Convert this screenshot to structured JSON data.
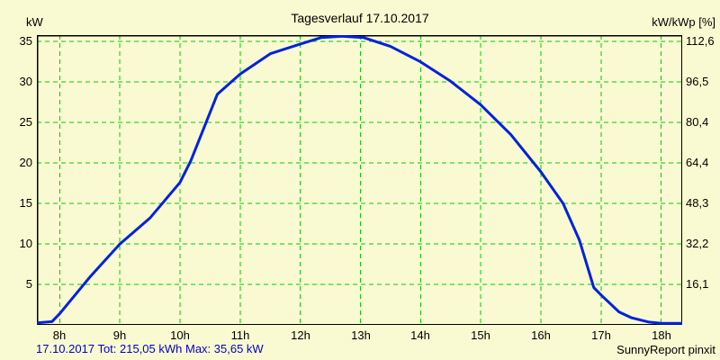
{
  "title": "Tagesverlauf 17.10.2017",
  "left_axis": {
    "label": "kW"
  },
  "right_axis": {
    "label": "kW/kWp [%]"
  },
  "footer": {
    "summary": "17.10.2017 Tot: 215,05 kWh Max: 35,65 kW",
    "branding": "SunnyReport pinxit"
  },
  "colors": {
    "background": "#FAFAD2",
    "grid": "#00CC00",
    "curve": "#0022DD",
    "border": "#000000",
    "summary_text": "#0000CC",
    "label_text": "#000000"
  },
  "chart_data": {
    "type": "line",
    "title": "Tagesverlauf 17.10.2017",
    "ylabel_left": "kW",
    "ylabel_right": "kW/kWp [%]",
    "x_unit": "hour_of_day",
    "grid": true,
    "grid_style": "dashed-green",
    "xlim": [
      7.62,
      18.35
    ],
    "ylim": [
      0,
      35.8
    ],
    "x_ticks": [
      {
        "h": 8,
        "label": "8h"
      },
      {
        "h": 9,
        "label": "9h"
      },
      {
        "h": 10,
        "label": "10h"
      },
      {
        "h": 11,
        "label": "11h"
      },
      {
        "h": 12,
        "label": "12h"
      },
      {
        "h": 13,
        "label": "13h"
      },
      {
        "h": 14,
        "label": "14h"
      },
      {
        "h": 15,
        "label": "15h"
      },
      {
        "h": 16,
        "label": "16h"
      },
      {
        "h": 17,
        "label": "17h"
      },
      {
        "h": 18,
        "label": "18h"
      }
    ],
    "y_ticks": [
      {
        "kw": 35,
        "kw_label": "35",
        "pct_label": "112,6"
      },
      {
        "kw": 30,
        "kw_label": "30",
        "pct_label": "96,5"
      },
      {
        "kw": 25,
        "kw_label": "25",
        "pct_label": "80,4"
      },
      {
        "kw": 20,
        "kw_label": "20",
        "pct_label": "64,4"
      },
      {
        "kw": 15,
        "kw_label": "15",
        "pct_label": "48,3"
      },
      {
        "kw": 10,
        "kw_label": "10",
        "pct_label": "32,2"
      },
      {
        "kw": 5,
        "kw_label": "5",
        "pct_label": "16,1"
      }
    ],
    "series": [
      {
        "name": "pv_power_kw",
        "color": "#0022DD",
        "points": [
          [
            7.62,
            0.25
          ],
          [
            7.87,
            0.4
          ],
          [
            8.0,
            1.4
          ],
          [
            8.5,
            5.9
          ],
          [
            9.0,
            10.0
          ],
          [
            9.5,
            13.2
          ],
          [
            10.0,
            17.6
          ],
          [
            10.18,
            20.3
          ],
          [
            10.62,
            28.5
          ],
          [
            11.0,
            31.0
          ],
          [
            11.5,
            33.5
          ],
          [
            12.0,
            34.7
          ],
          [
            12.35,
            35.5
          ],
          [
            12.7,
            35.65
          ],
          [
            13.05,
            35.5
          ],
          [
            13.5,
            34.4
          ],
          [
            14.0,
            32.5
          ],
          [
            14.5,
            30.1
          ],
          [
            15.0,
            27.2
          ],
          [
            15.5,
            23.5
          ],
          [
            16.0,
            18.9
          ],
          [
            16.37,
            15.0
          ],
          [
            16.64,
            10.5
          ],
          [
            16.88,
            4.6
          ],
          [
            17.0,
            3.7
          ],
          [
            17.3,
            1.6
          ],
          [
            17.5,
            0.9
          ],
          [
            17.8,
            0.35
          ],
          [
            18.0,
            0.2
          ],
          [
            18.35,
            0.2
          ]
        ]
      }
    ],
    "stats": {
      "date": "17.10.2017",
      "total": "215,05 kWh",
      "max": "35,65 kW"
    }
  }
}
